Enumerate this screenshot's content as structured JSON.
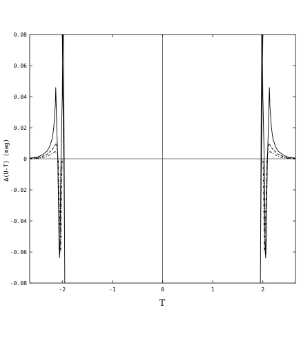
{
  "chart_data": {
    "type": "line",
    "title": "",
    "xlabel": "T",
    "ylabel": "Δ(U-T) (mag)",
    "xlim": [
      -2.65,
      2.65
    ],
    "ylim": [
      -0.08,
      0.08
    ],
    "x_ticks": [
      -2,
      -1,
      0,
      1,
      2
    ],
    "x_tick_labels": [
      "-2",
      "-1",
      "0",
      "1",
      "2"
    ],
    "y_ticks": [
      -0.08,
      -0.06,
      -0.04,
      -0.02,
      0,
      0.02,
      0.04,
      0.06,
      0.08
    ],
    "y_tick_labels": [
      "-0.08",
      "-0.06",
      "-0.04",
      "-0.02",
      "0",
      "0.02",
      "0.04",
      "0.06",
      "0.08"
    ],
    "grid": false,
    "axes_lines_through_origin": true,
    "series": [
      {
        "style": "solid",
        "color": "#000000",
        "x": [
          -2.65,
          -2.5,
          -2.4,
          -2.3,
          -2.25,
          -2.2,
          -2.17,
          -2.14,
          -2.13,
          -2.11,
          -2.09,
          -2.075,
          -2.065,
          -2.055,
          -2.045,
          -2.035,
          -2.02,
          -2.0,
          -1.99,
          -1.975,
          -1.965,
          -1.95,
          -1.95,
          -1.955,
          -1.97,
          -1.99,
          -2.0
        ],
        "y": [
          0.0004,
          0.001,
          0.0025,
          0.005,
          0.008,
          0.013,
          0.02,
          0.034,
          0.046,
          0.02,
          0.0,
          -0.03,
          -0.055,
          -0.064,
          -0.05,
          -0.02,
          0.01,
          0.04,
          0.08,
          0.08,
          0.02,
          -0.08,
          -0.08,
          -0.05,
          0.0,
          0.05,
          0.08
        ]
      },
      {
        "style": "solid",
        "color": "#000000",
        "x": [
          2.65,
          2.5,
          2.4,
          2.3,
          2.25,
          2.2,
          2.17,
          2.14,
          2.13,
          2.11,
          2.09,
          2.075,
          2.065,
          2.055,
          2.045,
          2.035,
          2.02,
          2.0,
          1.99,
          1.975,
          1.965,
          1.95,
          1.95,
          1.955,
          1.97,
          1.99,
          2.0
        ],
        "y": [
          0.0004,
          0.001,
          0.0025,
          0.005,
          0.008,
          0.013,
          0.02,
          0.034,
          0.046,
          0.02,
          0.0,
          -0.03,
          -0.055,
          -0.064,
          -0.05,
          -0.02,
          0.01,
          0.04,
          0.08,
          0.08,
          0.02,
          -0.08,
          -0.08,
          -0.05,
          0.0,
          0.05,
          0.08
        ]
      },
      {
        "style": "dashed",
        "color": "#000000",
        "x": [
          -2.65,
          -2.5,
          -2.4,
          -2.3,
          -2.2,
          -2.15,
          -2.12,
          -2.1,
          -2.09,
          -2.08,
          -2.07,
          -2.06,
          -2.05,
          -2.04,
          -2.03,
          -2.02
        ],
        "y": [
          0.0002,
          0.0006,
          0.0015,
          0.003,
          0.006,
          0.0085,
          0.01,
          0.006,
          0.0,
          -0.02,
          -0.04,
          -0.058,
          -0.062,
          -0.05,
          -0.02,
          0.0
        ]
      },
      {
        "style": "dashed",
        "color": "#000000",
        "x": [
          2.65,
          2.5,
          2.4,
          2.3,
          2.2,
          2.15,
          2.12,
          2.1,
          2.09,
          2.08,
          2.07,
          2.06,
          2.05,
          2.04,
          2.03,
          2.02
        ],
        "y": [
          0.0002,
          0.0006,
          0.0015,
          0.003,
          0.006,
          0.0085,
          0.01,
          0.006,
          0.0,
          -0.02,
          -0.04,
          -0.058,
          -0.062,
          -0.05,
          -0.02,
          0.0
        ]
      },
      {
        "style": "dot-dash",
        "color": "#000000",
        "x": [
          -2.65,
          -2.5,
          -2.4,
          -2.3,
          -2.2,
          -2.15,
          -2.12,
          -2.1,
          -2.08,
          -2.06,
          -2.04,
          -2.03,
          -2.02,
          -2.01,
          -2.0
        ],
        "y": [
          0.0001,
          0.0003,
          0.0008,
          0.0016,
          0.0035,
          0.0045,
          0.0045,
          0.004,
          0.0,
          -0.03,
          -0.055,
          -0.06,
          -0.04,
          -0.01,
          0.0
        ]
      },
      {
        "style": "dot-dash",
        "color": "#000000",
        "x": [
          2.65,
          2.5,
          2.4,
          2.3,
          2.2,
          2.15,
          2.12,
          2.1,
          2.08,
          2.06,
          2.04,
          2.03,
          2.02,
          2.01,
          2.0
        ],
        "y": [
          0.0001,
          0.0003,
          0.0008,
          0.0016,
          0.0035,
          0.0045,
          0.0045,
          0.004,
          0.0,
          -0.03,
          -0.055,
          -0.06,
          -0.04,
          -0.01,
          0.0
        ]
      }
    ]
  }
}
